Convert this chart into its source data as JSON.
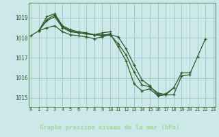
{
  "title": "Graphe pression niveau de la mer (hPa)",
  "background_color": "#cce8e8",
  "plot_bg_color": "#cce8e8",
  "line_color": "#2d5a27",
  "grid_color": "#a0cccc",
  "spine_color": "#4a7a4a",
  "footer_color": "#2d5a27",
  "footer_text_color": "#a0d8a0",
  "xlim": [
    -0.3,
    23.3
  ],
  "ylim": [
    1014.55,
    1019.75
  ],
  "yticks": [
    1015,
    1016,
    1017,
    1018,
    1019
  ],
  "xticks": [
    0,
    1,
    2,
    3,
    4,
    5,
    6,
    7,
    8,
    9,
    10,
    11,
    12,
    13,
    14,
    15,
    16,
    17,
    18,
    19,
    20,
    21,
    22,
    23
  ],
  "series": [
    [
      null,
      1018.35,
      1018.9,
      1019.15,
      1018.55,
      1018.35,
      1018.25,
      1018.2,
      1018.15,
      1018.15,
      1018.15,
      1017.7,
      1017.15,
      1016.3,
      1015.65,
      1015.55,
      1015.25,
      1015.15,
      1015.15,
      1016.1,
      1016.15,
      1017.05,
      1017.95,
      null
    ],
    [
      null,
      1018.35,
      1019.05,
      1019.2,
      1018.6,
      1018.4,
      1018.3,
      1018.25,
      1018.15,
      1018.25,
      1018.3,
      null,
      null,
      null,
      null,
      null,
      null,
      null,
      null,
      null,
      null,
      null,
      null,
      null
    ],
    [
      null,
      1018.35,
      1018.85,
      1019.05,
      1018.5,
      1018.3,
      1018.25,
      1018.2,
      1018.15,
      1018.1,
      1018.2,
      1017.55,
      1016.85,
      1015.7,
      1015.35,
      1015.45,
      1015.1,
      1015.15,
      1015.5,
      null,
      null,
      null,
      null,
      null
    ],
    [
      1018.1,
      1018.35,
      1018.5,
      1018.6,
      1018.3,
      1018.15,
      1018.1,
      1018.05,
      1017.95,
      1018.05,
      1018.15,
      1018.05,
      1017.45,
      1016.65,
      1015.9,
      1015.6,
      1015.15,
      1015.2,
      1015.5,
      1016.25,
      1016.25,
      null,
      null,
      null
    ]
  ]
}
